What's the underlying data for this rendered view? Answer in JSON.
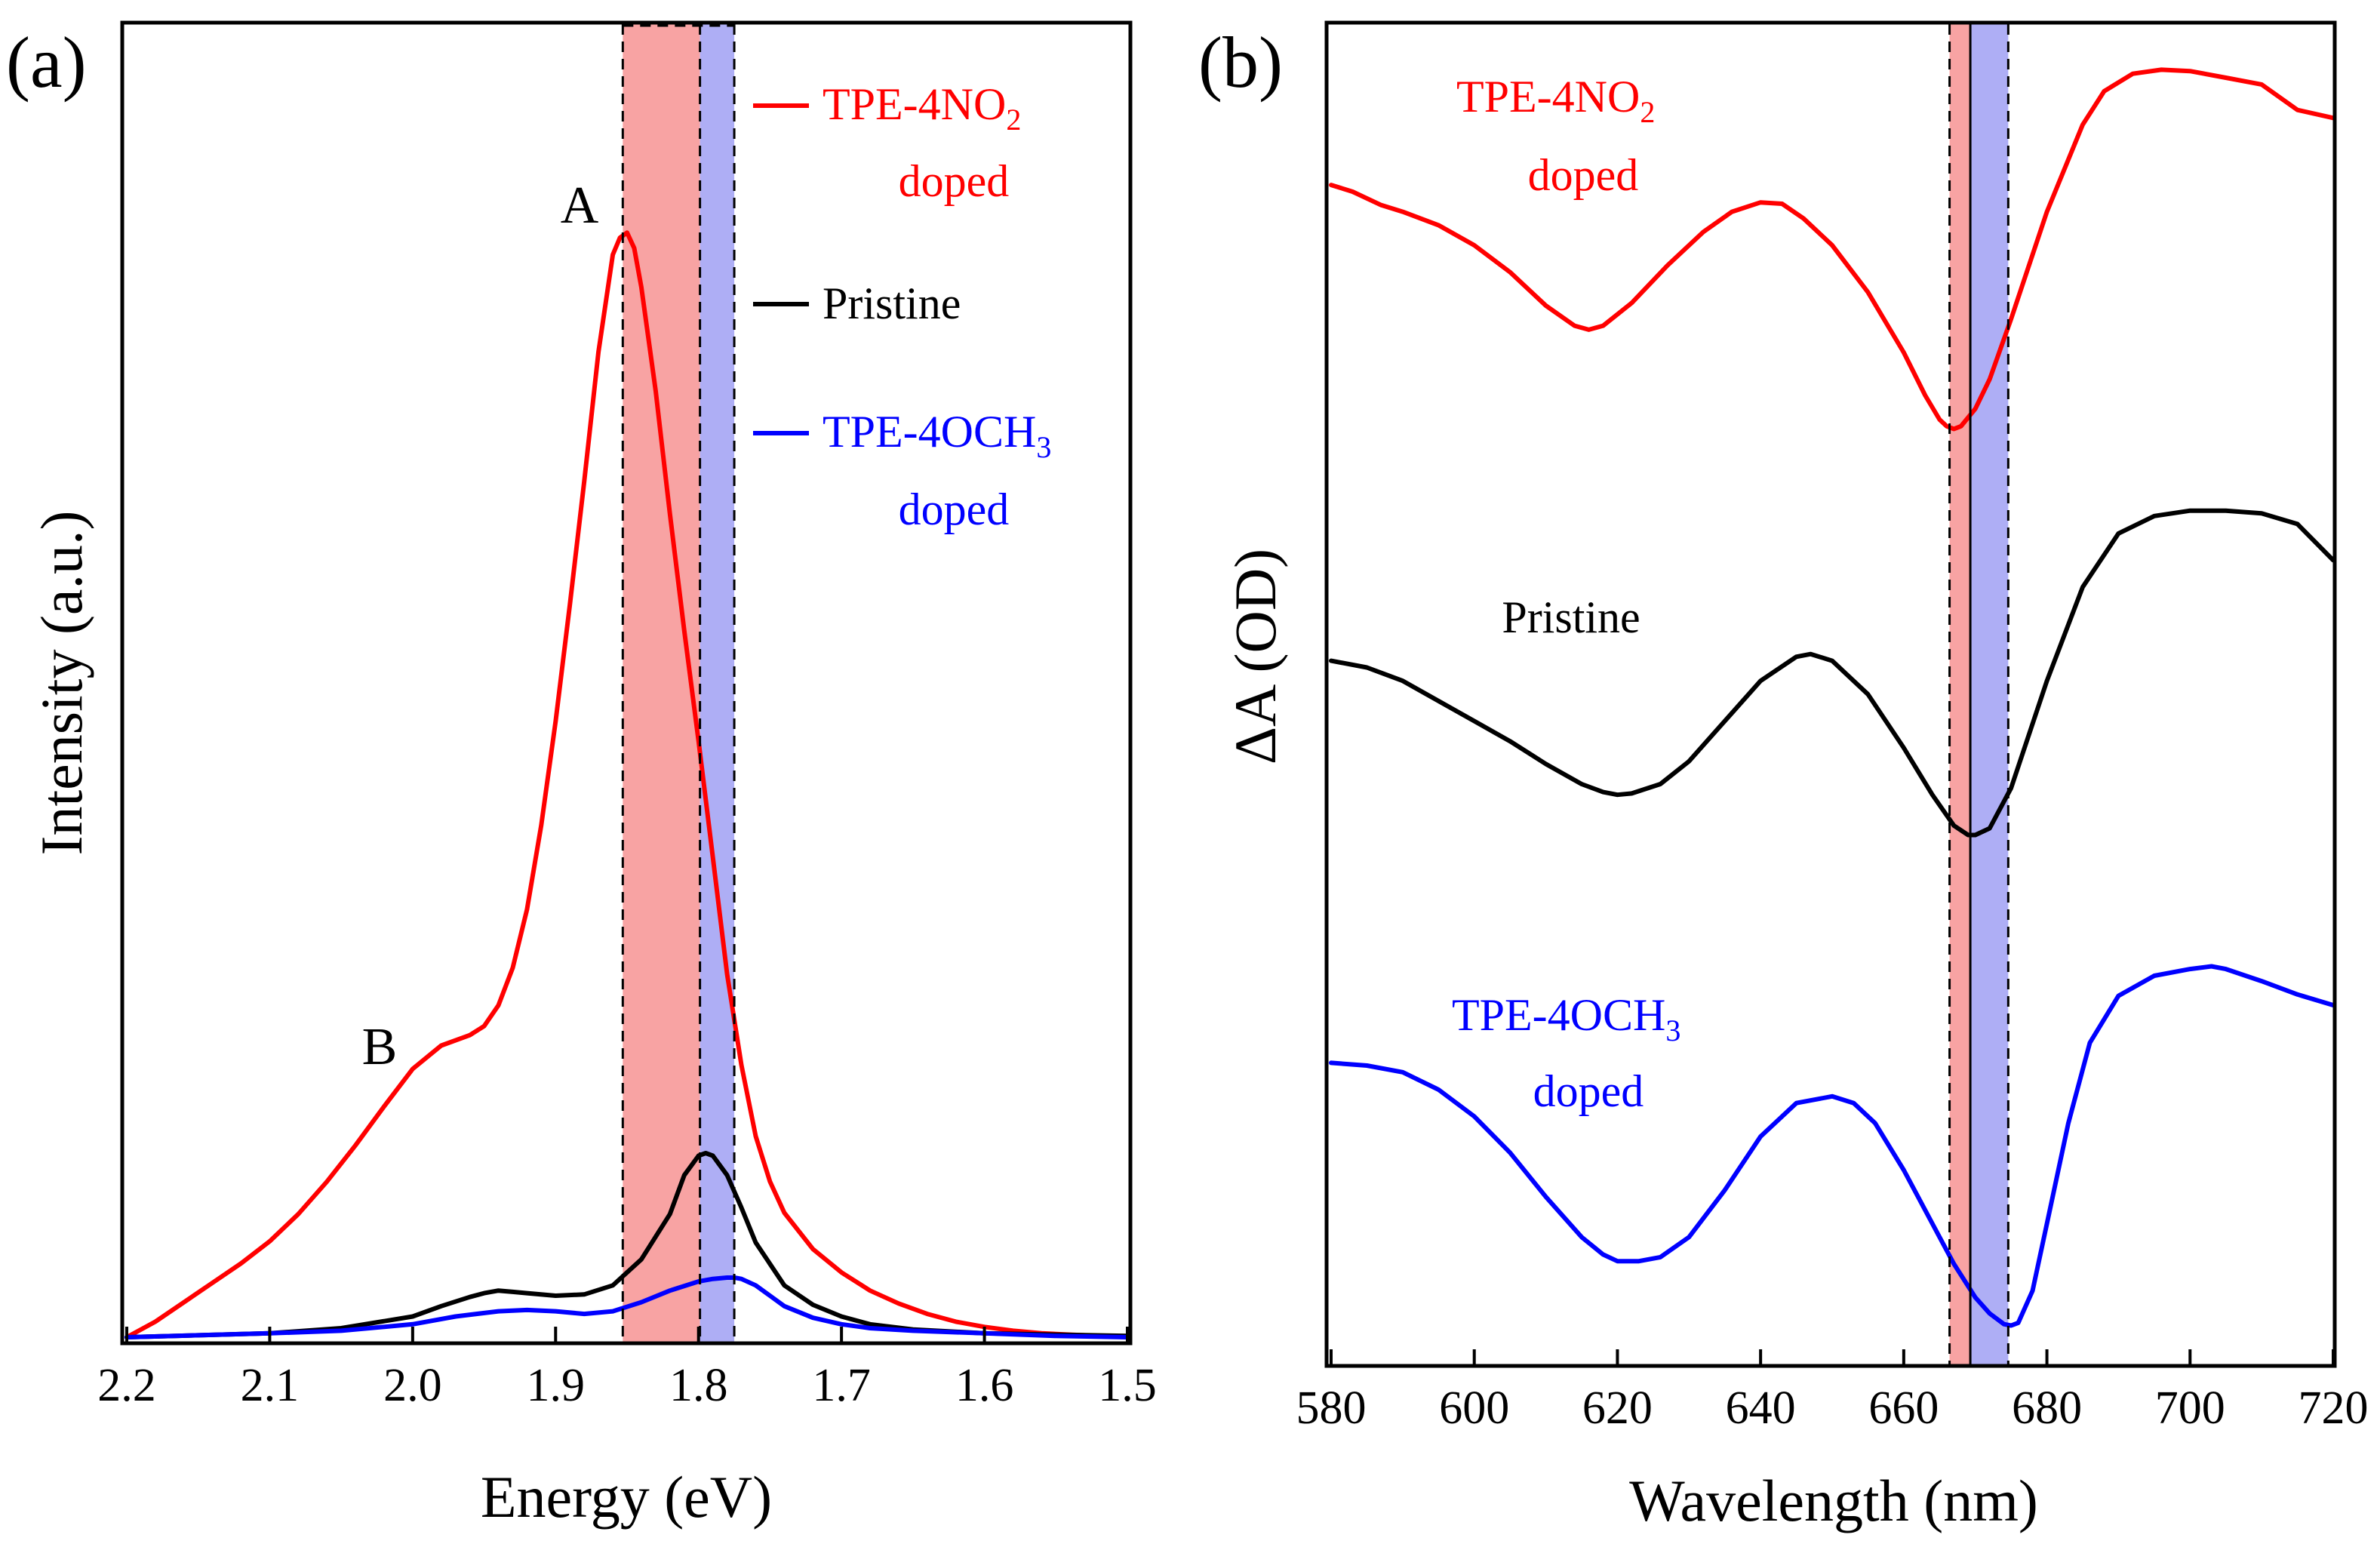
{
  "colors": {
    "nitro": "#ff0000",
    "pristine": "#000000",
    "methoxy": "#0000ff",
    "red_band": "#f8a3a3",
    "blue_band": "#aeaef5",
    "axis": "#000000"
  },
  "chart_data": [
    {
      "type": "line",
      "panel_label": "(a)",
      "title": "",
      "xlabel": "Energy (eV)",
      "ylabel": "Intensity (a.u.)",
      "xlim": [
        2.2,
        1.5
      ],
      "x_reversed": true,
      "ylim": [
        0,
        1.0
      ],
      "y_ticks_shown": false,
      "grid": false,
      "x_ticks": [
        2.2,
        2.1,
        2.0,
        1.9,
        1.8,
        1.7,
        1.6,
        1.5
      ],
      "x_tick_labels": [
        "2.2",
        "2.1",
        "2.0",
        "1.9",
        "1.8",
        "1.7",
        "1.6",
        "1.5"
      ],
      "shaded_regions": [
        {
          "x0": 1.853,
          "x1": 1.799,
          "color_key": "red_band"
        },
        {
          "x0": 1.799,
          "x1": 1.775,
          "color_key": "blue_band"
        }
      ],
      "dashed_lines": [
        1.853,
        1.799,
        1.775
      ],
      "annotations": [
        {
          "text": "A",
          "x": 1.88,
          "y": 0.855
        },
        {
          "text": "B",
          "x": 2.038,
          "y": 0.218
        }
      ],
      "legend": {
        "placement": "top-right",
        "entries": [
          {
            "main": "TPE-4NO",
            "sub": "2",
            "line2": "doped",
            "color_key": "nitro",
            "with_line": true
          },
          {
            "main": "Pristine",
            "sub": "",
            "line2": "",
            "color_key": "pristine",
            "with_line": true
          },
          {
            "main": "TPE-4OCH",
            "sub": "3",
            "line2": "doped",
            "color_key": "methoxy",
            "with_line": true
          }
        ]
      },
      "series": [
        {
          "name": "TPE-4NO2 doped",
          "color_key": "nitro",
          "x": [
            2.2,
            2.18,
            2.16,
            2.14,
            2.12,
            2.1,
            2.08,
            2.06,
            2.04,
            2.02,
            2.0,
            1.98,
            1.96,
            1.95,
            1.94,
            1.93,
            1.92,
            1.91,
            1.9,
            1.89,
            1.88,
            1.87,
            1.86,
            1.855,
            1.85,
            1.845,
            1.84,
            1.83,
            1.82,
            1.81,
            1.8,
            1.79,
            1.78,
            1.77,
            1.76,
            1.75,
            1.74,
            1.72,
            1.7,
            1.68,
            1.66,
            1.64,
            1.62,
            1.6,
            1.58,
            1.56,
            1.54,
            1.52,
            1.5
          ],
          "y": [
            0.0,
            0.012,
            0.027,
            0.042,
            0.057,
            0.074,
            0.095,
            0.12,
            0.148,
            0.178,
            0.207,
            0.225,
            0.233,
            0.24,
            0.256,
            0.285,
            0.33,
            0.395,
            0.475,
            0.565,
            0.66,
            0.76,
            0.835,
            0.848,
            0.852,
            0.84,
            0.81,
            0.73,
            0.635,
            0.545,
            0.46,
            0.37,
            0.28,
            0.21,
            0.155,
            0.12,
            0.096,
            0.068,
            0.05,
            0.036,
            0.026,
            0.018,
            0.012,
            0.008,
            0.005,
            0.003,
            0.002,
            0.001,
            0.0
          ]
        },
        {
          "name": "Pristine",
          "color_key": "pristine",
          "x": [
            2.2,
            2.1,
            2.05,
            2.0,
            1.98,
            1.96,
            1.95,
            1.94,
            1.93,
            1.92,
            1.9,
            1.88,
            1.86,
            1.84,
            1.82,
            1.81,
            1.8,
            1.795,
            1.79,
            1.78,
            1.77,
            1.76,
            1.74,
            1.72,
            1.7,
            1.68,
            1.65,
            1.6,
            1.55,
            1.5
          ],
          "y": [
            0.0,
            0.003,
            0.007,
            0.016,
            0.024,
            0.031,
            0.034,
            0.036,
            0.035,
            0.034,
            0.032,
            0.033,
            0.04,
            0.06,
            0.095,
            0.125,
            0.14,
            0.142,
            0.14,
            0.125,
            0.1,
            0.073,
            0.04,
            0.025,
            0.016,
            0.01,
            0.006,
            0.003,
            0.002,
            0.001
          ]
        },
        {
          "name": "TPE-4OCH3 doped",
          "color_key": "methoxy",
          "x": [
            2.2,
            2.1,
            2.05,
            2.0,
            1.97,
            1.94,
            1.92,
            1.9,
            1.88,
            1.86,
            1.84,
            1.82,
            1.8,
            1.79,
            1.78,
            1.775,
            1.77,
            1.76,
            1.75,
            1.74,
            1.72,
            1.7,
            1.68,
            1.65,
            1.6,
            1.55,
            1.5
          ],
          "y": [
            0.0,
            0.003,
            0.005,
            0.01,
            0.016,
            0.02,
            0.021,
            0.02,
            0.018,
            0.02,
            0.027,
            0.036,
            0.043,
            0.045,
            0.046,
            0.046,
            0.045,
            0.04,
            0.032,
            0.024,
            0.015,
            0.01,
            0.007,
            0.005,
            0.003,
            0.001,
            0.0
          ]
        }
      ]
    },
    {
      "type": "line",
      "panel_label": "(b)",
      "title": "",
      "xlabel": "Wavelength (nm)",
      "ylabel": "ΔA (OD)",
      "xlim": [
        580,
        720
      ],
      "ylim": [
        0,
        1.0
      ],
      "y_ticks_shown": false,
      "grid": false,
      "x_ticks": [
        580,
        600,
        620,
        640,
        660,
        680,
        700,
        720
      ],
      "x_tick_labels": [
        "580",
        "600",
        "620",
        "640",
        "660",
        "680",
        "700",
        "720"
      ],
      "shaded_regions": [
        {
          "x0": 666.4,
          "x1": 669.3,
          "color_key": "red_band"
        },
        {
          "x0": 669.3,
          "x1": 674.6,
          "color_key": "blue_band"
        }
      ],
      "dashed_lines": [
        666.4,
        674.6
      ],
      "solid_lines": [
        669.3
      ],
      "annotations": [
        {
          "main": "TPE-4NO",
          "sub": "2",
          "line2": "doped",
          "color_key": "nitro",
          "x": 627,
          "y": 0.92
        },
        {
          "main": "Pristine",
          "sub": "",
          "line2": "",
          "color_key": "pristine",
          "x": 626,
          "y": 0.565
        },
        {
          "main": "TPE-4OCH",
          "sub": "3",
          "line2": "doped",
          "color_key": "methoxy",
          "x": 626,
          "y": 0.25
        }
      ],
      "series": [
        {
          "name": "TPE-4NO2 doped",
          "color_key": "nitro",
          "x": [
            580,
            583,
            587,
            590,
            595,
            600,
            605,
            610,
            614,
            616,
            618,
            622,
            627,
            632,
            636,
            640,
            643,
            646,
            650,
            655,
            660,
            663,
            665,
            666,
            667,
            668,
            670,
            672,
            675,
            680,
            685,
            688,
            692,
            696,
            700,
            705,
            710,
            715,
            720
          ],
          "y": [
            0.88,
            0.875,
            0.865,
            0.86,
            0.85,
            0.835,
            0.815,
            0.79,
            0.775,
            0.772,
            0.775,
            0.792,
            0.82,
            0.845,
            0.86,
            0.867,
            0.866,
            0.855,
            0.835,
            0.8,
            0.755,
            0.723,
            0.705,
            0.7,
            0.698,
            0.7,
            0.713,
            0.735,
            0.78,
            0.86,
            0.925,
            0.95,
            0.963,
            0.966,
            0.965,
            0.96,
            0.955,
            0.936,
            0.93
          ]
        },
        {
          "name": "Pristine",
          "color_key": "pristine",
          "x": [
            580,
            585,
            590,
            595,
            600,
            605,
            610,
            615,
            618,
            620,
            622,
            626,
            630,
            635,
            640,
            645,
            647,
            650,
            655,
            660,
            664,
            667,
            669,
            670,
            672,
            675,
            680,
            685,
            690,
            695,
            700,
            705,
            710,
            715,
            720
          ],
          "y": [
            0.525,
            0.52,
            0.51,
            0.495,
            0.48,
            0.465,
            0.448,
            0.433,
            0.427,
            0.425,
            0.426,
            0.433,
            0.45,
            0.48,
            0.51,
            0.528,
            0.53,
            0.525,
            0.5,
            0.46,
            0.425,
            0.402,
            0.395,
            0.395,
            0.4,
            0.43,
            0.51,
            0.58,
            0.62,
            0.633,
            0.637,
            0.637,
            0.635,
            0.627,
            0.6
          ]
        },
        {
          "name": "TPE-4OCH3 doped",
          "color_key": "methoxy",
          "x": [
            580,
            585,
            590,
            595,
            600,
            605,
            610,
            615,
            618,
            620,
            623,
            626,
            630,
            635,
            640,
            645,
            650,
            653,
            656,
            660,
            664,
            667,
            670,
            672,
            674,
            675,
            676,
            678,
            680,
            683,
            686,
            690,
            695,
            700,
            703,
            705,
            710,
            715,
            720
          ],
          "y": [
            0.225,
            0.223,
            0.218,
            0.205,
            0.185,
            0.158,
            0.125,
            0.095,
            0.082,
            0.077,
            0.077,
            0.08,
            0.095,
            0.13,
            0.17,
            0.195,
            0.2,
            0.195,
            0.18,
            0.145,
            0.105,
            0.075,
            0.05,
            0.038,
            0.03,
            0.029,
            0.031,
            0.055,
            0.105,
            0.18,
            0.24,
            0.275,
            0.29,
            0.295,
            0.297,
            0.295,
            0.286,
            0.276,
            0.268
          ]
        }
      ]
    }
  ]
}
